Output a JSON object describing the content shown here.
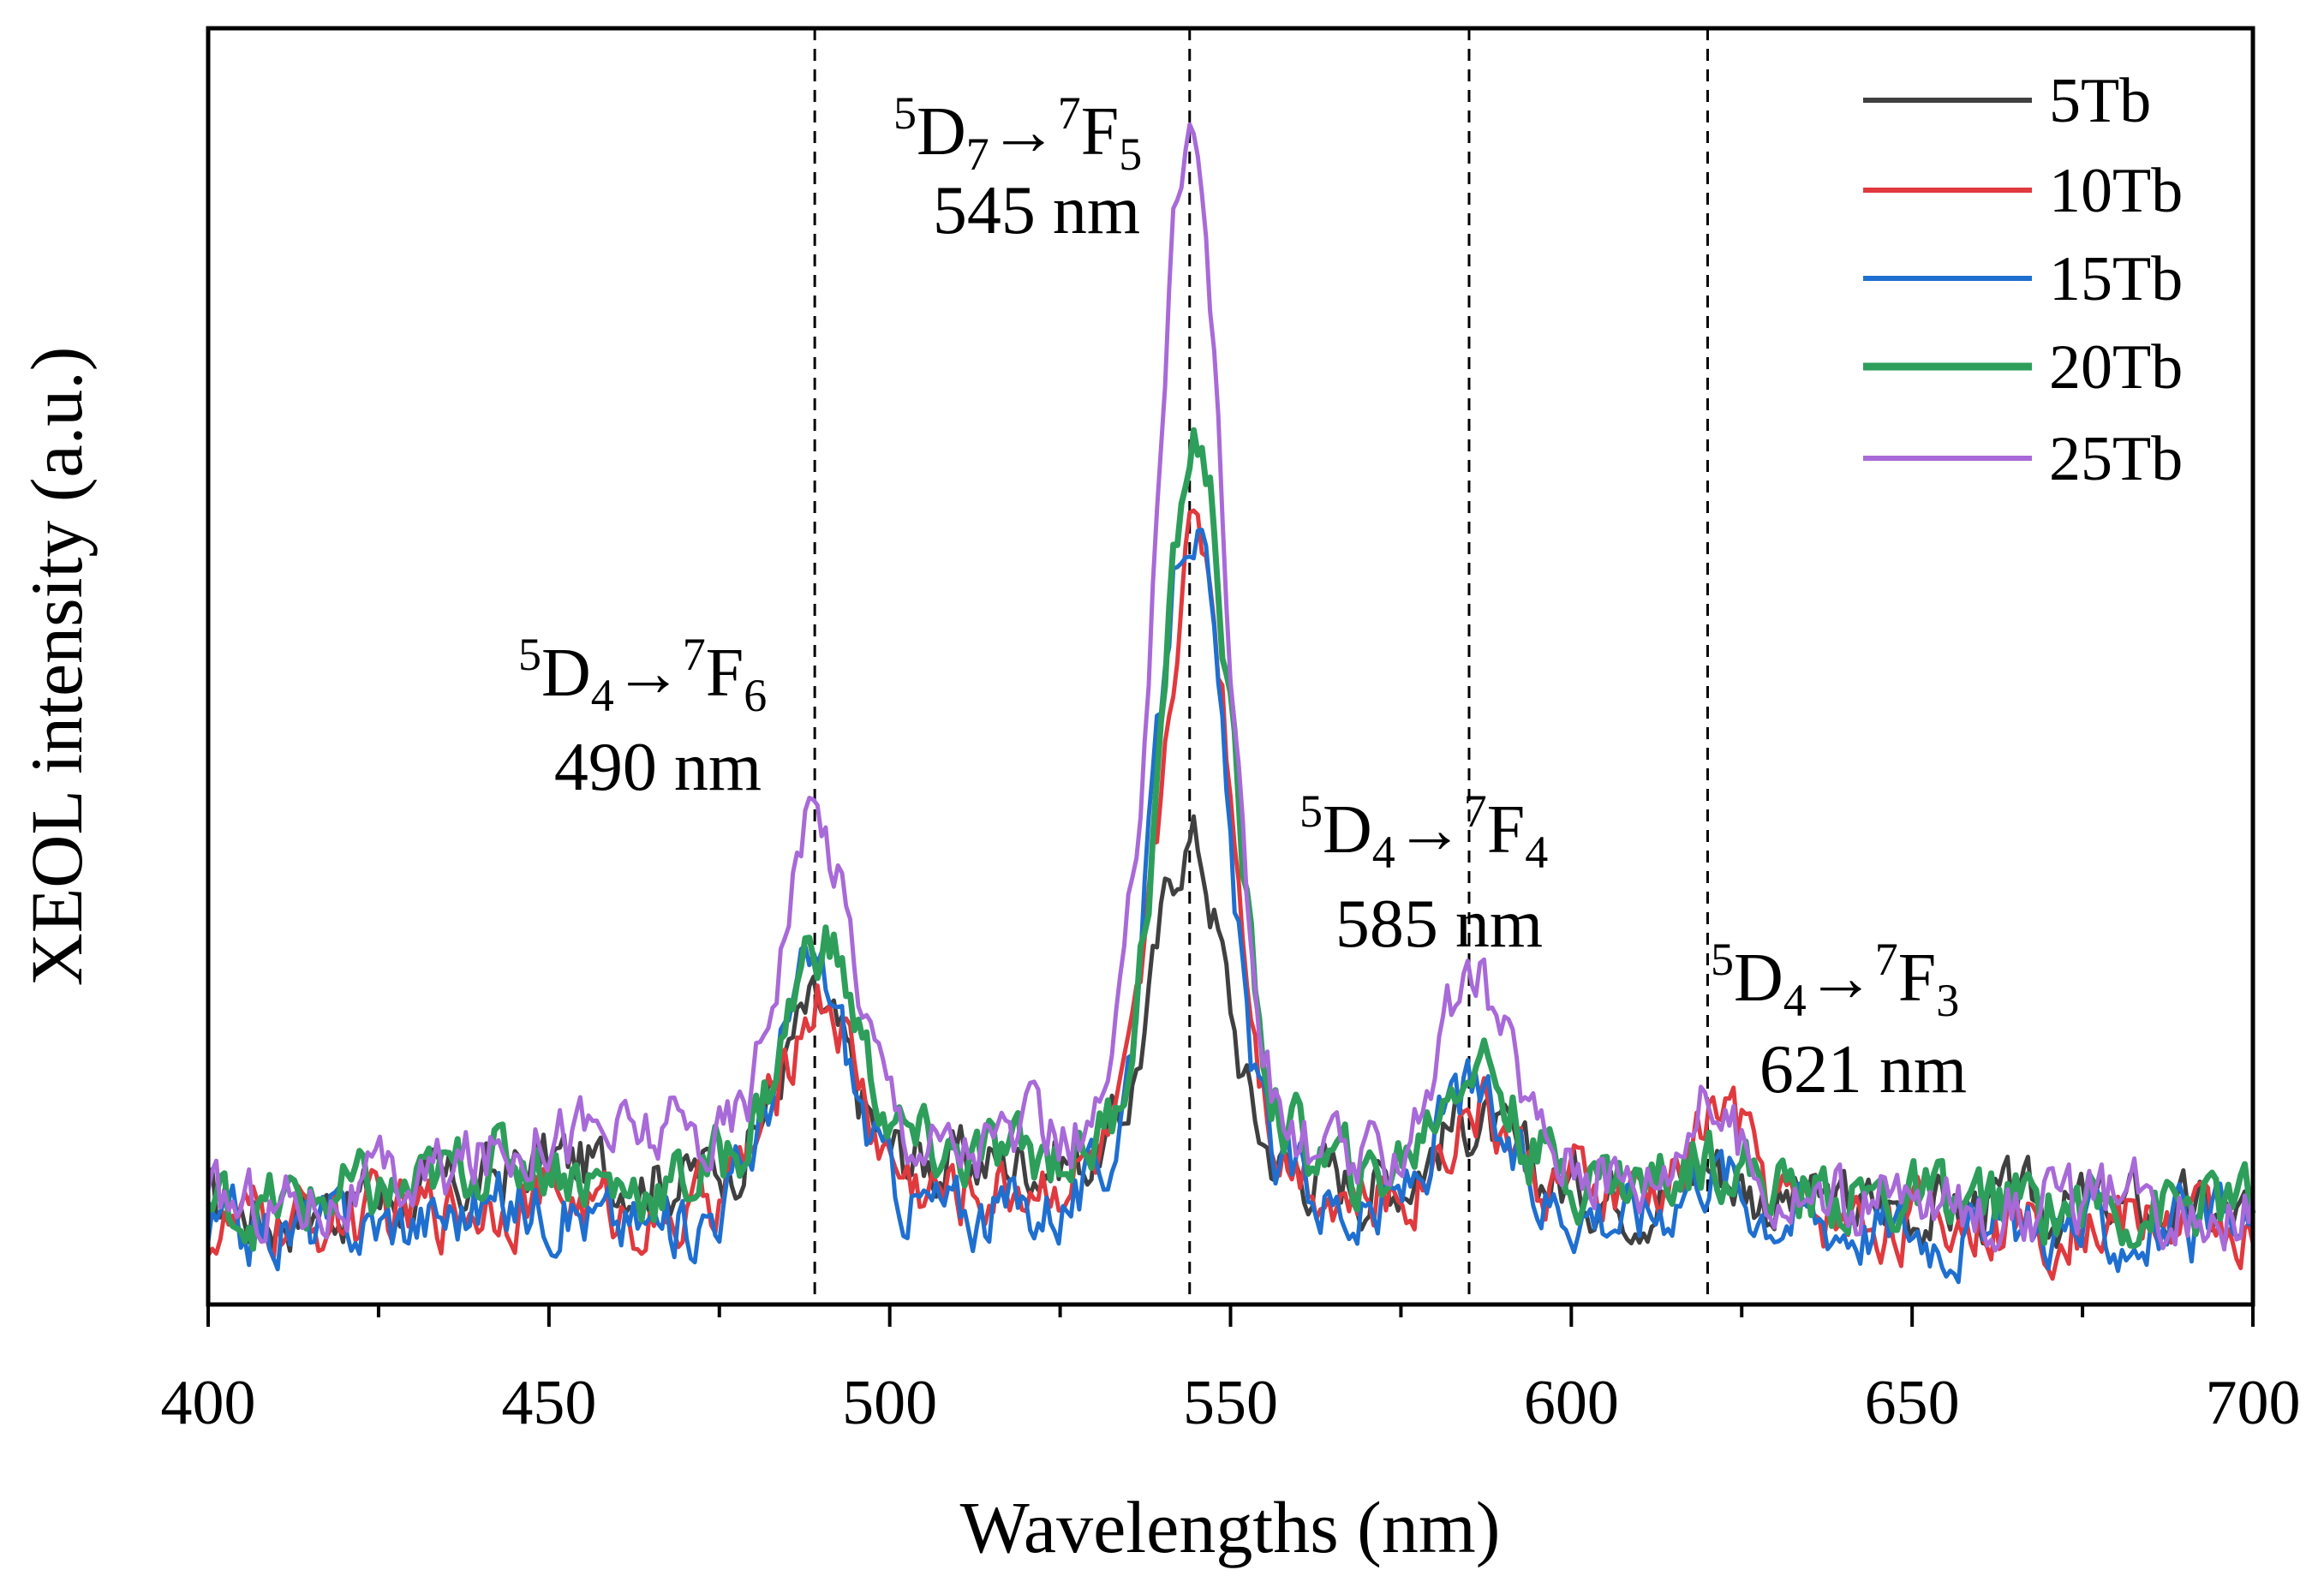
{
  "chart_data": {
    "type": "line",
    "title": "",
    "xlabel": "Wavelengths (nm)",
    "ylabel": "XEOL intensity (a.u.)",
    "xlim": [
      400,
      700
    ],
    "ylim": [
      0,
      1.05
    ],
    "xticks": [
      400,
      450,
      500,
      550,
      600,
      650,
      700
    ],
    "xtick_labels": [
      "400",
      "450",
      "500",
      "550",
      "600",
      "650",
      "700"
    ],
    "legend_position": "top-right",
    "grid": false,
    "reference_lines": [
      489,
      544,
      585,
      620
    ],
    "baseline_wavelengths": [
      400,
      410,
      420,
      430,
      440,
      450,
      460,
      470,
      480,
      500,
      510,
      520,
      530,
      560,
      570,
      580,
      600,
      610,
      630,
      640,
      650,
      660,
      670,
      680,
      690,
      700
    ],
    "series": [
      {
        "name": "5Tb",
        "color": "#404040",
        "width": 5,
        "baseline": [
          0.08,
          0.075,
          0.085,
          0.09,
          0.1,
          0.12,
          0.11,
          0.105,
          0.12,
          0.12,
          0.115,
          0.12,
          0.12,
          0.11,
          0.1,
          0.105,
          0.1,
          0.09,
          0.085,
          0.08,
          0.08,
          0.08,
          0.08,
          0.08,
          0.075,
          0.07
        ],
        "peaks": [
          {
            "center": 489,
            "height": 0.12,
            "width": 5
          },
          {
            "center": 544,
            "height": 0.27,
            "width": 5
          },
          {
            "center": 585,
            "height": 0.05,
            "width": 4.5
          },
          {
            "center": 620,
            "height": 0.03,
            "width": 4
          }
        ]
      },
      {
        "name": "10Tb",
        "color": "#e0393e",
        "width": 5,
        "baseline": [
          0.06,
          0.065,
          0.07,
          0.075,
          0.085,
          0.09,
          0.075,
          0.07,
          0.11,
          0.1,
          0.09,
          0.1,
          0.11,
          0.11,
          0.08,
          0.095,
          0.095,
          0.085,
          0.08,
          0.07,
          0.07,
          0.07,
          0.065,
          0.07,
          0.07,
          0.065
        ],
        "peaks": [
          {
            "center": 490,
            "height": 0.15,
            "width": 5
          },
          {
            "center": 545,
            "height": 0.53,
            "width": 5
          },
          {
            "center": 586,
            "height": 0.07,
            "width": 4.5
          },
          {
            "center": 622,
            "height": 0.08,
            "width": 4
          }
        ]
      },
      {
        "name": "15Tb",
        "color": "#1f6fd0",
        "width": 5,
        "baseline": [
          0.06,
          0.06,
          0.065,
          0.07,
          0.08,
          0.085,
          0.065,
          0.065,
          0.1,
          0.09,
          0.075,
          0.08,
          0.09,
          0.1,
          0.07,
          0.095,
          0.085,
          0.075,
          0.08,
          0.07,
          0.065,
          0.06,
          0.065,
          0.06,
          0.06,
          0.06
        ],
        "peaks": [
          {
            "center": 489,
            "height": 0.18,
            "width": 5
          },
          {
            "center": 544,
            "height": 0.56,
            "width": 5
          },
          {
            "center": 585,
            "height": 0.08,
            "width": 4.5
          },
          {
            "center": 620,
            "height": 0.04,
            "width": 4
          }
        ]
      },
      {
        "name": "20Tb",
        "color": "#2e9e5b",
        "width": 7,
        "baseline": [
          0.08,
          0.08,
          0.09,
          0.09,
          0.12,
          0.12,
          0.095,
          0.1,
          0.13,
          0.13,
          0.12,
          0.12,
          0.13,
          0.13,
          0.1,
          0.13,
          0.11,
          0.1,
          0.095,
          0.09,
          0.085,
          0.08,
          0.085,
          0.08,
          0.08,
          0.08
        ],
        "peaks": [
          {
            "center": 490,
            "height": 0.17,
            "width": 5
          },
          {
            "center": 545,
            "height": 0.58,
            "width": 5
          },
          {
            "center": 586,
            "height": 0.08,
            "width": 4.5
          },
          {
            "center": 621,
            "height": 0.03,
            "width": 4
          }
        ]
      },
      {
        "name": "25Tb",
        "color": "#a86ad8",
        "width": 5,
        "baseline": [
          0.08,
          0.085,
          0.09,
          0.1,
          0.12,
          0.15,
          0.14,
          0.14,
          0.12,
          0.14,
          0.13,
          0.14,
          0.13,
          0.13,
          0.11,
          0.14,
          0.12,
          0.1,
          0.095,
          0.085,
          0.08,
          0.08,
          0.08,
          0.085,
          0.08,
          0.08
        ],
        "peaks": [
          {
            "center": 489,
            "height": 0.27,
            "width": 5.5
          },
          {
            "center": 544,
            "height": 0.84,
            "width": 5
          },
          {
            "center": 586,
            "height": 0.13,
            "width": 5
          },
          {
            "center": 620,
            "height": 0.07,
            "width": 4
          }
        ]
      }
    ],
    "annotations": [
      {
        "id": "ann-490",
        "sup1": "5",
        "base1": "D",
        "sub1": "4",
        "arrow": "→",
        "sup2": "7",
        "base2": "F",
        "sub2": "6",
        "wavelength": "490 nm"
      },
      {
        "id": "ann-545",
        "sup1": "5",
        "base1": "D",
        "sub1": "7",
        "arrow": "→",
        "sup2": "7",
        "base2": "F",
        "sub2": "5",
        "wavelength": "545 nm"
      },
      {
        "id": "ann-585",
        "sup1": "5",
        "base1": "D",
        "sub1": "4",
        "arrow": "→",
        "sup2": "7",
        "base2": "F",
        "sub2": "4",
        "wavelength": "585 nm"
      },
      {
        "id": "ann-621",
        "sup1": "5",
        "base1": "D",
        "sub1": "4",
        "arrow": "→",
        "sup2": "7",
        "base2": "F",
        "sub2": "3",
        "wavelength": "621 nm"
      }
    ]
  }
}
